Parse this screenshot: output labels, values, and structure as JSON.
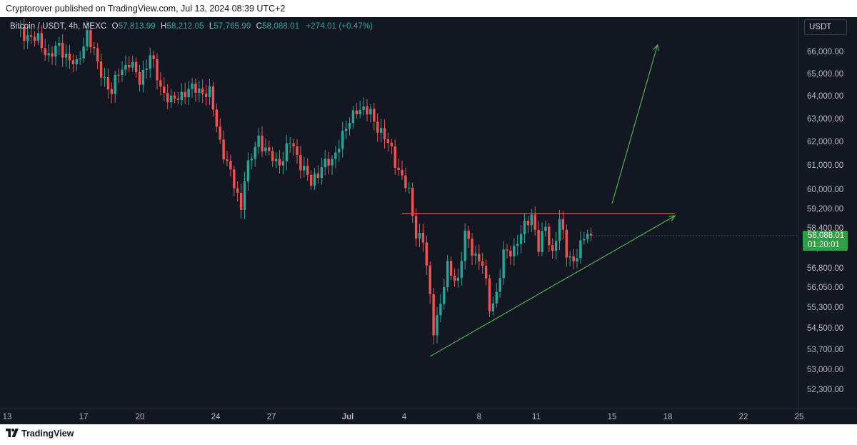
{
  "header": {
    "publisher_line": "Cryptorover published on TradingView.com, Jul 13, 2024 08:39 UTC+2"
  },
  "legend": {
    "symbol": "Bitcoin / USDT, 4h, MEXC",
    "open_label": "O",
    "open": "57,813.99",
    "high_label": "H",
    "high": "58,212.05",
    "low_label": "L",
    "low": "57,765.99",
    "close_label": "C",
    "close": "58,088.01",
    "change": "+274.01 (+0.47%)"
  },
  "currency_button": "USDT",
  "price_tag": {
    "price": "58,088.01",
    "countdown": "01:20:01",
    "color": "#2ea043"
  },
  "footer": {
    "brand": "TradingView"
  },
  "colors": {
    "background": "#131722",
    "up": "#26a69a",
    "down": "#ef5350",
    "resistance_line": "#e05252",
    "support_line": "#4caf50",
    "projection_arrow": "#4caf50",
    "axis_text": "#b2b5be"
  },
  "chart_data": {
    "type": "candlestick",
    "symbol": "Bitcoin / USDT",
    "interval": "4h",
    "exchange": "MEXC",
    "y_axis": {
      "ticks": [
        "66,000.00",
        "65,000.00",
        "64,000.00",
        "63,000.00",
        "62,000.00",
        "61,000.00",
        "60,000.00",
        "59,200.00",
        "58,400.00",
        "57,600.00",
        "56,800.00",
        "56,050.00",
        "55,300.00",
        "54,500.00",
        "53,700.00",
        "53,000.00",
        "52,300.00"
      ],
      "scale": "log",
      "range": [
        51800,
        67300
      ]
    },
    "x_axis": {
      "ticks": [
        "13",
        "17",
        "20",
        "24",
        "27",
        "Jul",
        "4",
        "8",
        "11",
        "15",
        "18",
        "22",
        "25"
      ]
    },
    "anchors": [
      {
        "index": 0,
        "price": 66950
      },
      {
        "index": 6,
        "price": 66500
      },
      {
        "index": 9,
        "price": 65800
      },
      {
        "index": 12,
        "price": 66200
      },
      {
        "index": 17,
        "price": 65300
      },
      {
        "index": 20,
        "price": 66900
      },
      {
        "index": 23,
        "price": 65400
      },
      {
        "index": 27,
        "price": 64100
      },
      {
        "index": 29,
        "price": 65100
      },
      {
        "index": 32,
        "price": 65500
      },
      {
        "index": 35,
        "price": 64700
      },
      {
        "index": 38,
        "price": 65800
      },
      {
        "index": 41,
        "price": 64400
      },
      {
        "index": 44,
        "price": 63700
      },
      {
        "index": 48,
        "price": 64200
      },
      {
        "index": 51,
        "price": 64300
      },
      {
        "index": 55,
        "price": 64100
      },
      {
        "index": 58,
        "price": 62000
      },
      {
        "index": 61,
        "price": 60600
      },
      {
        "index": 64,
        "price": 59300
      },
      {
        "index": 65,
        "price": 60500
      },
      {
        "index": 67,
        "price": 61300
      },
      {
        "index": 69,
        "price": 62200
      },
      {
        "index": 71,
        "price": 61600
      },
      {
        "index": 74,
        "price": 61100
      },
      {
        "index": 76,
        "price": 61300
      },
      {
        "index": 78,
        "price": 62000
      },
      {
        "index": 80,
        "price": 61400
      },
      {
        "index": 84,
        "price": 60200
      },
      {
        "index": 87,
        "price": 61000
      },
      {
        "index": 90,
        "price": 61100
      },
      {
        "index": 92,
        "price": 62000
      },
      {
        "index": 95,
        "price": 62800
      },
      {
        "index": 97,
        "price": 63500
      },
      {
        "index": 101,
        "price": 63200
      },
      {
        "index": 104,
        "price": 62400
      },
      {
        "index": 107,
        "price": 61600
      },
      {
        "index": 109,
        "price": 60800
      },
      {
        "index": 112,
        "price": 59800
      },
      {
        "index": 114,
        "price": 58200
      },
      {
        "index": 116,
        "price": 57900
      },
      {
        "index": 119,
        "price": 54500
      },
      {
        "index": 121,
        "price": 55400
      },
      {
        "index": 123,
        "price": 56800
      },
      {
        "index": 126,
        "price": 56300
      },
      {
        "index": 128,
        "price": 58100
      },
      {
        "index": 131,
        "price": 57300
      },
      {
        "index": 133,
        "price": 56900
      },
      {
        "index": 135,
        "price": 55300
      },
      {
        "index": 137,
        "price": 55800
      },
      {
        "index": 139,
        "price": 57300
      },
      {
        "index": 142,
        "price": 57600
      },
      {
        "index": 145,
        "price": 58400
      },
      {
        "index": 147,
        "price": 59000
      },
      {
        "index": 149,
        "price": 57600
      },
      {
        "index": 151,
        "price": 58400
      },
      {
        "index": 153,
        "price": 57400
      },
      {
        "index": 155,
        "price": 58700
      },
      {
        "index": 157,
        "price": 57400
      },
      {
        "index": 159,
        "price": 57100
      },
      {
        "index": 161,
        "price": 57600
      },
      {
        "index": 163,
        "price": 58300
      },
      {
        "index": 164,
        "price": 58088
      }
    ],
    "drawings": {
      "resistance": {
        "price": 59000,
        "from_index": 110,
        "to_index": 188
      },
      "support_trend": {
        "from": {
          "index": 118,
          "price": 53450
        },
        "to": {
          "index": 188,
          "price": 58900
        }
      },
      "projection_arrow": {
        "from": {
          "index": 170,
          "price": 59400
        },
        "to": {
          "index": 183,
          "price": 66300
        }
      }
    }
  }
}
